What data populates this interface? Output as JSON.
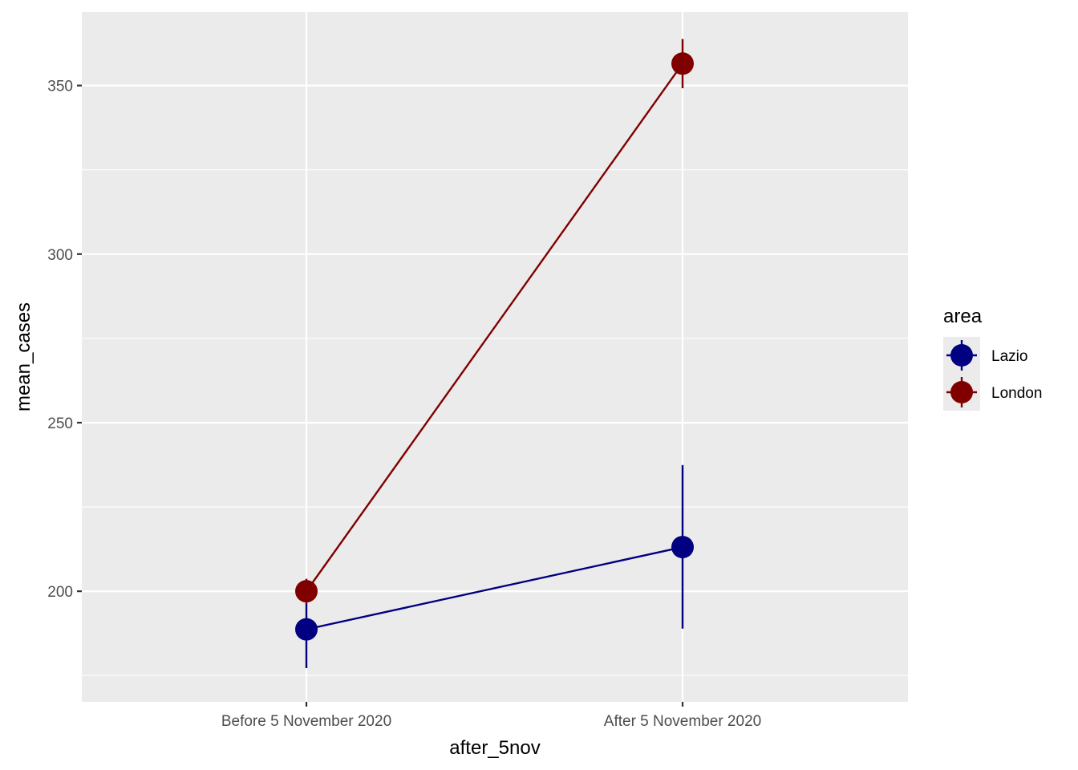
{
  "chart_data": {
    "type": "line",
    "categories": [
      "Before 5 November 2020",
      "After 5 November 2020"
    ],
    "xlabel": "after_5nov",
    "ylabel": "mean_cases",
    "ylim": [
      167.2,
      371.8
    ],
    "yticks": [
      200,
      250,
      300,
      350
    ],
    "grid": true,
    "legend": {
      "title": "area",
      "position": "right",
      "entries": [
        "Lazio",
        "London"
      ]
    },
    "series": [
      {
        "name": "Lazio",
        "color": "#000080",
        "values": [
          188.7,
          213.1
        ],
        "error_low": [
          177.2,
          188.9
        ],
        "error_high": [
          196.4,
          237.4
        ]
      },
      {
        "name": "London",
        "color": "#800000",
        "values": [
          200.0,
          356.5
        ],
        "error_low": [
          196.3,
          349.2
        ],
        "error_high": [
          203.7,
          363.8
        ]
      }
    ]
  }
}
